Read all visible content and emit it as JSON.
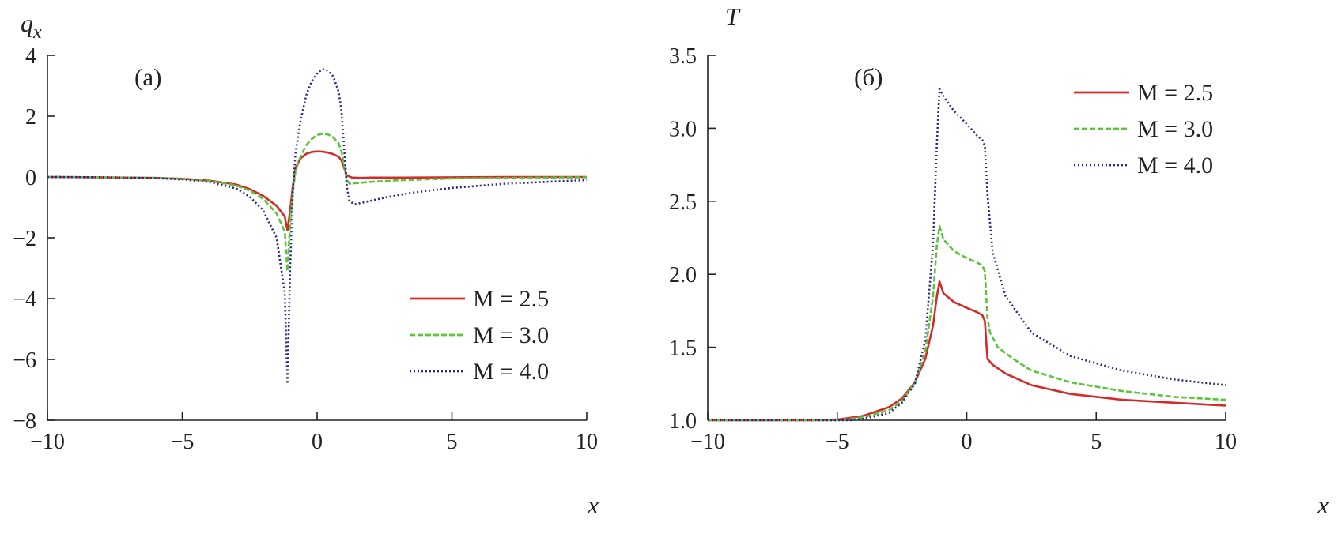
{
  "chart_data": [
    {
      "type": "line",
      "panel_label": "(a)",
      "xlabel": "x",
      "ylabel": "q",
      "ylabel_sub": "x",
      "xlim": [
        -10,
        10
      ],
      "ylim": [
        -8,
        4
      ],
      "xticks": [
        -10,
        -5,
        0,
        5,
        10
      ],
      "xtick_labels": [
        "−10",
        "−5",
        "0",
        "5",
        "10"
      ],
      "yticks": [
        -8,
        -6,
        -4,
        -2,
        0,
        2,
        4
      ],
      "ytick_labels": [
        "−8",
        "−6",
        "−4",
        "−2",
        "0",
        "2",
        "4"
      ],
      "grid": false,
      "legend_position": "bottom-right",
      "series": [
        {
          "name": "M = 2.5",
          "color": "#d42a2a",
          "dash": "solid",
          "x": [
            -10,
            -8,
            -6,
            -5,
            -4,
            -3,
            -2.5,
            -2,
            -1.5,
            -1.2,
            -1.1,
            -1.0,
            -0.9,
            -0.8,
            -0.6,
            -0.4,
            -0.2,
            0,
            0.2,
            0.4,
            0.6,
            0.8,
            0.9,
            1.0,
            1.1,
            1.3,
            1.6,
            2,
            3,
            5,
            7,
            10
          ],
          "y": [
            0,
            -0.01,
            -0.03,
            -0.06,
            -0.12,
            -0.25,
            -0.4,
            -0.62,
            -0.95,
            -1.3,
            -1.75,
            -1.1,
            -0.3,
            0.3,
            0.62,
            0.76,
            0.82,
            0.84,
            0.83,
            0.8,
            0.75,
            0.66,
            0.55,
            0.3,
            0.05,
            -0.02,
            -0.03,
            -0.02,
            -0.02,
            -0.01,
            0,
            0
          ]
        },
        {
          "name": "M = 3.0",
          "color": "#5cc43a",
          "dash": "7,3",
          "x": [
            -10,
            -8,
            -6,
            -5,
            -4,
            -3,
            -2.5,
            -2,
            -1.5,
            -1.2,
            -1.1,
            -1.0,
            -0.9,
            -0.8,
            -0.6,
            -0.4,
            -0.2,
            0,
            0.2,
            0.4,
            0.6,
            0.8,
            0.9,
            1.0,
            1.1,
            1.2,
            1.5,
            2,
            3,
            4,
            5,
            7,
            10
          ],
          "y": [
            0,
            -0.01,
            -0.03,
            -0.06,
            -0.13,
            -0.28,
            -0.45,
            -0.72,
            -1.2,
            -1.8,
            -3.1,
            -1.5,
            -0.5,
            0.2,
            0.7,
            1.05,
            1.25,
            1.38,
            1.42,
            1.4,
            1.3,
            1.1,
            0.85,
            0.4,
            -0.1,
            -0.22,
            -0.2,
            -0.16,
            -0.11,
            -0.08,
            -0.05,
            -0.03,
            -0.01
          ]
        },
        {
          "name": "M = 4.0",
          "color": "#2a2a8c",
          "dash": "2,3",
          "x": [
            -10,
            -8,
            -6,
            -5,
            -4,
            -3,
            -2.5,
            -2,
            -1.5,
            -1.2,
            -1.1,
            -1.0,
            -0.9,
            -0.8,
            -0.6,
            -0.4,
            -0.2,
            0,
            0.2,
            0.4,
            0.6,
            0.8,
            0.9,
            1.0,
            1.1,
            1.2,
            1.4,
            1.8,
            2.5,
            3.5,
            5,
            7,
            10
          ],
          "y": [
            0,
            -0.01,
            -0.04,
            -0.08,
            -0.17,
            -0.38,
            -0.65,
            -1.1,
            -2.0,
            -3.8,
            -6.8,
            -3.0,
            -0.5,
            0.8,
            1.9,
            2.7,
            3.15,
            3.4,
            3.55,
            3.5,
            3.3,
            2.8,
            2.2,
            1.0,
            -0.3,
            -0.8,
            -0.9,
            -0.82,
            -0.68,
            -0.52,
            -0.36,
            -0.22,
            -0.1
          ]
        }
      ]
    },
    {
      "type": "line",
      "panel_label": "(б)",
      "xlabel": "x",
      "ylabel": "T",
      "xlim": [
        -10,
        10
      ],
      "ylim": [
        1.0,
        3.5
      ],
      "xticks": [
        -10,
        -5,
        0,
        5,
        10
      ],
      "xtick_labels": [
        "−10",
        "−5",
        "0",
        "5",
        "10"
      ],
      "yticks": [
        1.0,
        1.5,
        2.0,
        2.5,
        3.0,
        3.5
      ],
      "ytick_labels": [
        "1.0",
        "1.5",
        "2.0",
        "2.5",
        "3.0",
        "3.5"
      ],
      "grid": false,
      "legend_position": "top-right",
      "series": [
        {
          "name": "M = 2.5",
          "color": "#d42a2a",
          "dash": "solid",
          "x": [
            -10,
            -6,
            -5,
            -4,
            -3,
            -2.5,
            -2,
            -1.6,
            -1.3,
            -1.15,
            -1.05,
            -0.9,
            -0.5,
            0,
            0.4,
            0.6,
            0.7,
            0.8,
            1.0,
            1.5,
            2.5,
            4,
            6,
            8,
            10
          ],
          "y": [
            1.0,
            1.0,
            1.005,
            1.03,
            1.09,
            1.15,
            1.26,
            1.42,
            1.65,
            1.85,
            1.95,
            1.87,
            1.81,
            1.77,
            1.74,
            1.72,
            1.68,
            1.42,
            1.38,
            1.32,
            1.24,
            1.18,
            1.14,
            1.12,
            1.1
          ]
        },
        {
          "name": "M = 3.0",
          "color": "#5cc43a",
          "dash": "7,3",
          "x": [
            -10,
            -6,
            -5,
            -4,
            -3,
            -2.5,
            -2,
            -1.6,
            -1.3,
            -1.15,
            -1.05,
            -0.9,
            -0.5,
            0,
            0.4,
            0.6,
            0.7,
            0.8,
            0.9,
            1.2,
            1.8,
            2.5,
            4,
            6,
            8,
            10
          ],
          "y": [
            1.0,
            1.0,
            1.0,
            1.02,
            1.07,
            1.13,
            1.26,
            1.47,
            1.85,
            2.2,
            2.33,
            2.24,
            2.16,
            2.11,
            2.08,
            2.06,
            2.02,
            1.7,
            1.6,
            1.5,
            1.42,
            1.34,
            1.26,
            1.2,
            1.16,
            1.14
          ]
        },
        {
          "name": "M = 4.0",
          "color": "#2a2a8c",
          "dash": "2,3",
          "x": [
            -10,
            -6,
            -5,
            -4.5,
            -4,
            -3,
            -2.5,
            -2,
            -1.6,
            -1.3,
            -1.15,
            -1.05,
            -0.9,
            -0.5,
            0,
            0.4,
            0.6,
            0.7,
            0.8,
            1.0,
            1.5,
            2.5,
            4,
            6,
            8,
            10
          ],
          "y": [
            1.0,
            1.0,
            1.0,
            1.0,
            1.01,
            1.05,
            1.12,
            1.25,
            1.55,
            2.2,
            2.9,
            3.27,
            3.22,
            3.12,
            3.03,
            2.95,
            2.92,
            2.88,
            2.55,
            2.15,
            1.85,
            1.6,
            1.44,
            1.34,
            1.28,
            1.24
          ]
        }
      ]
    }
  ]
}
